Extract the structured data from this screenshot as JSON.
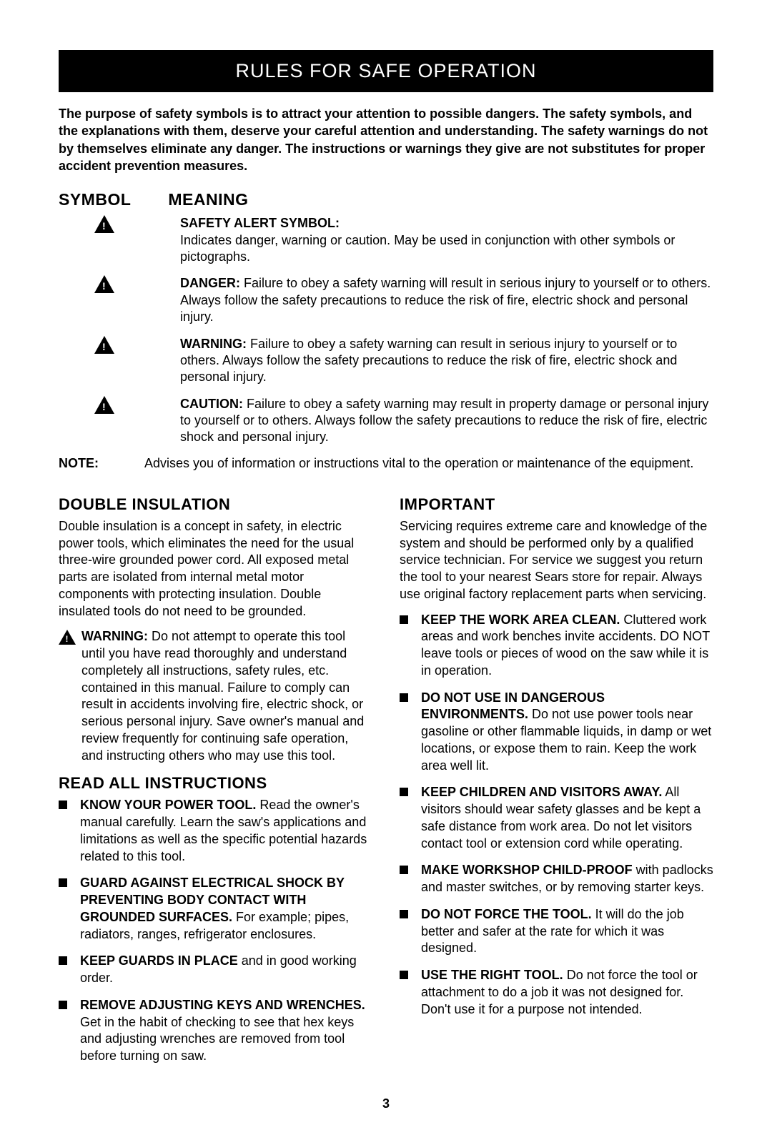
{
  "title_bar": "RULES FOR SAFE OPERATION",
  "intro": "The purpose of safety symbols is to attract your attention to possible dangers. The safety symbols, and the explanations with them, deserve your careful attention and understanding. The safety warnings do not by themselves eliminate any danger. The instructions or warnings they give are not substitutes for proper accident prevention measures.",
  "tbl": {
    "c1": "SYMBOL",
    "c2": "MEANING"
  },
  "rows": [
    {
      "head": "SAFETY ALERT SYMBOL:",
      "body": "Indicates danger, warning or caution. May be used in conjunction with other symbols or pictographs."
    },
    {
      "head": "DANGER:",
      "body": " Failure to obey a safety warning will result in serious injury to yourself or to others. Always follow the safety precautions to reduce the risk of fire, electric shock and personal injury."
    },
    {
      "head": "WARNING:",
      "body": " Failure to obey a safety warning can result in serious injury to yourself or to others. Always follow the safety precautions to reduce the risk of fire, electric shock and personal injury."
    },
    {
      "head": "CAUTION:",
      "body": " Failure to obey a safety warning may result in property damage or personal injury to yourself or to others. Always follow the safety precautions to reduce the risk of fire, electric shock and personal injury."
    }
  ],
  "note": {
    "label": "NOTE:",
    "body": "Advises you of information or instructions vital to the operation or maintenance of the equipment."
  },
  "left": {
    "h_double": "DOUBLE INSULATION",
    "double_body": "Double insulation is a concept in safety, in electric power tools, which eliminates the need for the usual three-wire grounded power cord. All exposed metal parts are isolated from internal metal motor components with protecting insulation. Double insulated tools do not need to be grounded.",
    "warn_head": "WARNING:",
    "warn_body": " Do not attempt to operate this tool until you have read thoroughly and understand completely all instructions, safety rules, etc. contained in this manual. Failure to comply can result in accidents involving fire, electric shock, or serious personal injury. Save owner's manual and review frequently for continuing safe operation, and instructing others who may use this tool.",
    "h_read": "READ ALL INSTRUCTIONS",
    "items": [
      {
        "b": "KNOW YOUR POWER TOOL.",
        "t": " Read the owner's manual carefully. Learn the saw's applications and limitations as well as the specific potential hazards related to this tool."
      },
      {
        "b": "GUARD AGAINST ELECTRICAL SHOCK BY PREVENTING BODY CONTACT WITH GROUNDED SURFACES.",
        "t": " For example; pipes, radiators, ranges, refrigerator enclosures."
      },
      {
        "b": "KEEP GUARDS IN PLACE",
        "t": " and in good working order."
      },
      {
        "b": "REMOVE ADJUSTING KEYS AND WRENCHES.",
        "t": "  Get in the habit of checking to see that hex keys and adjusting wrenches are removed from tool before turning on saw."
      }
    ]
  },
  "right": {
    "h_imp": "IMPORTANT",
    "imp_body": "Servicing requires extreme care and knowledge of the system and should be performed only by a qualified service technician. For service we suggest you return the tool to your nearest Sears store for repair. Always use original factory replacement parts when servicing.",
    "items": [
      {
        "b": "KEEP THE WORK AREA CLEAN.",
        "t": " Cluttered work areas and work benches invite accidents. DO NOT leave tools or pieces of wood on the saw while it is in operation."
      },
      {
        "b": "DO NOT USE IN DANGEROUS ENVIRONMENTS.",
        "t": " Do not use power tools near gasoline or other flammable liquids, in damp or wet locations, or expose them to rain. Keep the work area well lit."
      },
      {
        "b": "KEEP CHILDREN AND VISITORS AWAY.",
        "t": " All visitors should wear safety glasses and be kept a safe distance from work area. Do not let visitors contact tool or extension cord while operating."
      },
      {
        "b": "MAKE WORKSHOP CHILD-PROOF",
        "t": " with padlocks and master switches, or by removing starter keys."
      },
      {
        "b": "DO NOT FORCE THE TOOL.",
        "t": " It will do the job better and safer at the rate for which it was designed."
      },
      {
        "b": "USE THE RIGHT TOOL.",
        "t": " Do not force the tool or attachment to do a job it was not designed for. Don't use it for a purpose not intended."
      }
    ]
  },
  "page_num": "3"
}
